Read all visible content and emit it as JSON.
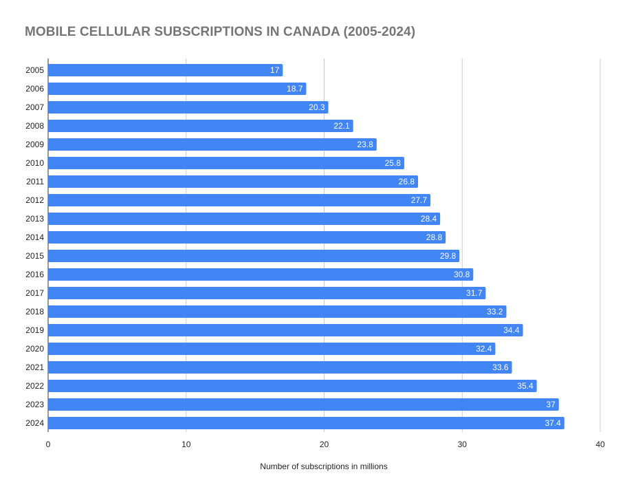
{
  "chart_data": {
    "type": "bar",
    "orientation": "horizontal",
    "title": "MOBILE CELLULAR SUBSCRIPTIONS IN CANADA (2005-2024)",
    "xlabel": "Number of subscriptions in millions",
    "ylabel": "",
    "xlim": [
      0,
      40
    ],
    "xticks": [
      "0",
      "10",
      "20",
      "30",
      "40"
    ],
    "grid": true,
    "legend": "none",
    "bar_color": "#4285f4",
    "categories": [
      "2005",
      "2006",
      "2007",
      "2008",
      "2009",
      "2010",
      "2011",
      "2012",
      "2013",
      "2014",
      "2015",
      "2016",
      "2017",
      "2018",
      "2019",
      "2020",
      "2021",
      "2022",
      "2023",
      "2024"
    ],
    "values": [
      17,
      18.7,
      20.3,
      22.1,
      23.8,
      25.8,
      26.8,
      27.7,
      28.4,
      28.8,
      29.8,
      30.8,
      31.7,
      33.2,
      34.4,
      32.4,
      33.6,
      35.4,
      37,
      37.4
    ],
    "data_labels": [
      "17",
      "18.7",
      "20.3",
      "22.1",
      "23.8",
      "25.8",
      "26.8",
      "27.7",
      "28.4",
      "28.8",
      "29.8",
      "30.8",
      "31.7",
      "33.2",
      "34.4",
      "32.4",
      "33.6",
      "35.4",
      "37",
      "37.4"
    ]
  }
}
